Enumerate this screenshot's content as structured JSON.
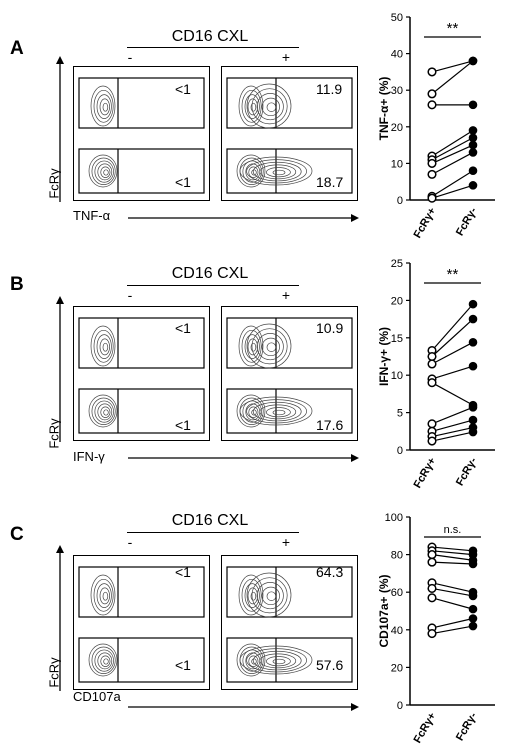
{
  "panels": [
    {
      "id": "A",
      "letter": "A",
      "treatment_label": "CD16 CXL",
      "conditions": [
        "-",
        "+"
      ],
      "facs_ylabel": "FcRγ",
      "facs_xlabel": "TNF-α",
      "gate_values": {
        "minus_top": "<1",
        "minus_bottom": "<1",
        "plus_top": "11.9",
        "plus_bottom": "18.7"
      }
    },
    {
      "id": "B",
      "letter": "B",
      "treatment_label": "CD16 CXL",
      "conditions": [
        "-",
        "+"
      ],
      "facs_ylabel": "FcRγ",
      "facs_xlabel": "IFN-γ",
      "gate_values": {
        "minus_top": "<1",
        "minus_bottom": "<1",
        "plus_top": "10.9",
        "plus_bottom": "17.6"
      }
    },
    {
      "id": "C",
      "letter": "C",
      "treatment_label": "CD16 CXL",
      "conditions": [
        "-",
        "+"
      ],
      "facs_ylabel": "FcRγ",
      "facs_xlabel": "CD107a",
      "gate_values": {
        "minus_top": "<1",
        "minus_bottom": "<1",
        "plus_top": "64.3",
        "plus_bottom": "57.6"
      }
    }
  ],
  "chart_data": [
    {
      "type": "scatter",
      "subtype": "paired",
      "ylabel": "TNF-α+ (%)",
      "categories": [
        "FcRγ+",
        "FcRγ-"
      ],
      "ylim": [
        0,
        50
      ],
      "yticks": [
        0,
        10,
        20,
        30,
        40,
        50
      ],
      "significance": "**",
      "pairs": [
        [
          35,
          38
        ],
        [
          29,
          38
        ],
        [
          26,
          26
        ],
        [
          12,
          19
        ],
        [
          11,
          17
        ],
        [
          10,
          15
        ],
        [
          7,
          13
        ],
        [
          1,
          8
        ],
        [
          0.5,
          4
        ]
      ]
    },
    {
      "type": "scatter",
      "subtype": "paired",
      "ylabel": "IFN-γ+ (%)",
      "categories": [
        "FcRγ+",
        "FcRγ-"
      ],
      "ylim": [
        0,
        25
      ],
      "yticks": [
        0,
        5,
        10,
        15,
        20,
        25
      ],
      "significance": "**",
      "pairs": [
        [
          13.3,
          19.5
        ],
        [
          12.5,
          17.5
        ],
        [
          11.5,
          14.4
        ],
        [
          9.5,
          11.2
        ],
        [
          9,
          6
        ],
        [
          3.5,
          5.7
        ],
        [
          2.5,
          4
        ],
        [
          1.8,
          3
        ],
        [
          1.2,
          2.4
        ]
      ]
    },
    {
      "type": "scatter",
      "subtype": "paired",
      "ylabel": "CD107a+ (%)",
      "categories": [
        "FcRγ+",
        "FcRγ-"
      ],
      "ylim": [
        0,
        100
      ],
      "yticks": [
        0,
        20,
        40,
        60,
        80,
        100
      ],
      "significance": "n.s.",
      "pairs": [
        [
          84,
          82
        ],
        [
          82,
          80
        ],
        [
          80,
          77
        ],
        [
          76,
          75
        ],
        [
          65,
          60
        ],
        [
          62,
          58
        ],
        [
          57,
          51
        ],
        [
          41,
          46
        ],
        [
          38,
          42
        ]
      ]
    }
  ],
  "colors": {
    "line": "#000000",
    "open_marker_fill": "#ffffff",
    "filled_marker": "#000000"
  }
}
